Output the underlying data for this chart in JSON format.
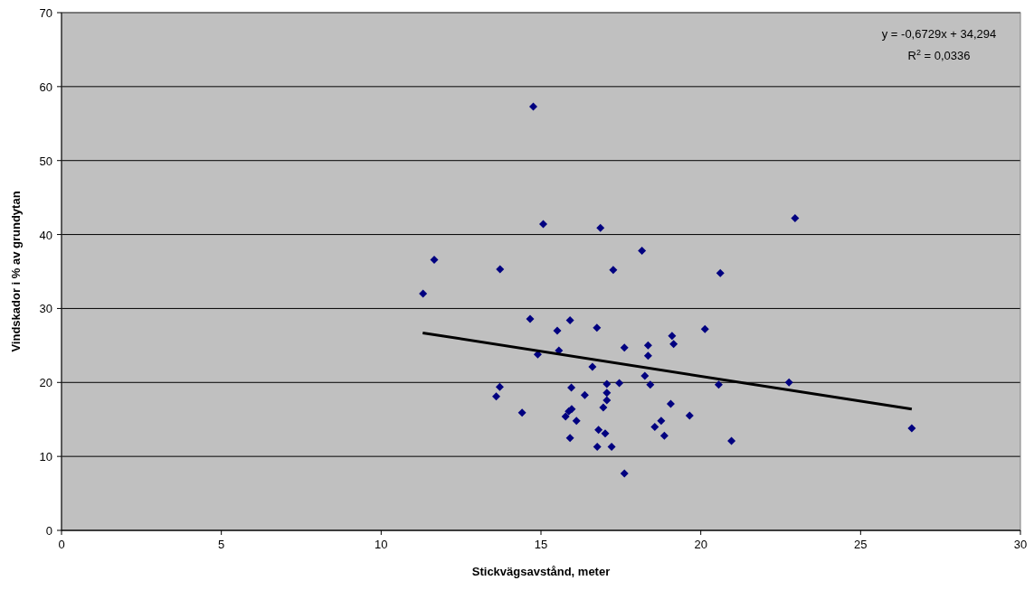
{
  "chart_data": {
    "type": "scatter",
    "xlabel": "Stickvägsavstånd, meter",
    "ylabel": "Vindskador i % av grundytan",
    "xlim": [
      0,
      30
    ],
    "xticks": [
      0,
      5,
      10,
      15,
      20,
      25,
      30
    ],
    "ylim": [
      0,
      70
    ],
    "yticks": [
      0,
      10,
      20,
      30,
      40,
      50,
      60,
      70
    ],
    "grid": "y",
    "marker": "diamond",
    "annotations": [
      "y = -0,6729x + 34,294",
      "R$^{2}$ = 0,0336"
    ],
    "series": [
      {
        "color": "#000080",
        "x": [
          11.31,
          11.66,
          13.72,
          13.6,
          13.71,
          14.76,
          14.66,
          14.41,
          15.07,
          16.86,
          17.26,
          18.16,
          15.91,
          15.51,
          16.75,
          15.56,
          14.9,
          17.61,
          18.35,
          18.35,
          19.1,
          19.15,
          20.13,
          16.61,
          18.25,
          15.95,
          17.06,
          17.45,
          18.42,
          16.37,
          17.06,
          17.06,
          16.95,
          19.06,
          15.96,
          15.87,
          15.77,
          16.11,
          19.65,
          18.76,
          18.56,
          18.86,
          16.8,
          17.01,
          15.91,
          16.76,
          17.21,
          17.61,
          22.95,
          20.61,
          20.56,
          22.76,
          20.96,
          26.6
        ],
        "values": [
          32.0,
          36.6,
          35.3,
          18.1,
          19.4,
          57.3,
          28.6,
          15.9,
          41.4,
          40.9,
          35.2,
          37.8,
          28.4,
          27.0,
          27.4,
          24.3,
          23.8,
          24.7,
          25.0,
          23.6,
          26.3,
          25.2,
          27.2,
          22.1,
          20.9,
          19.3,
          19.8,
          19.9,
          19.7,
          18.3,
          18.6,
          17.6,
          16.6,
          17.1,
          16.4,
          16.1,
          15.4,
          14.8,
          15.5,
          14.8,
          14.0,
          12.8,
          13.6,
          13.1,
          12.5,
          11.3,
          11.3,
          7.7,
          42.2,
          34.8,
          19.7,
          20.0,
          12.1,
          13.8
        ]
      },
      {
        "type": "line",
        "color": "#000000",
        "x": [
          11.3,
          26.6
        ],
        "values": [
          26.7,
          16.4
        ],
        "marker": "none"
      }
    ]
  }
}
